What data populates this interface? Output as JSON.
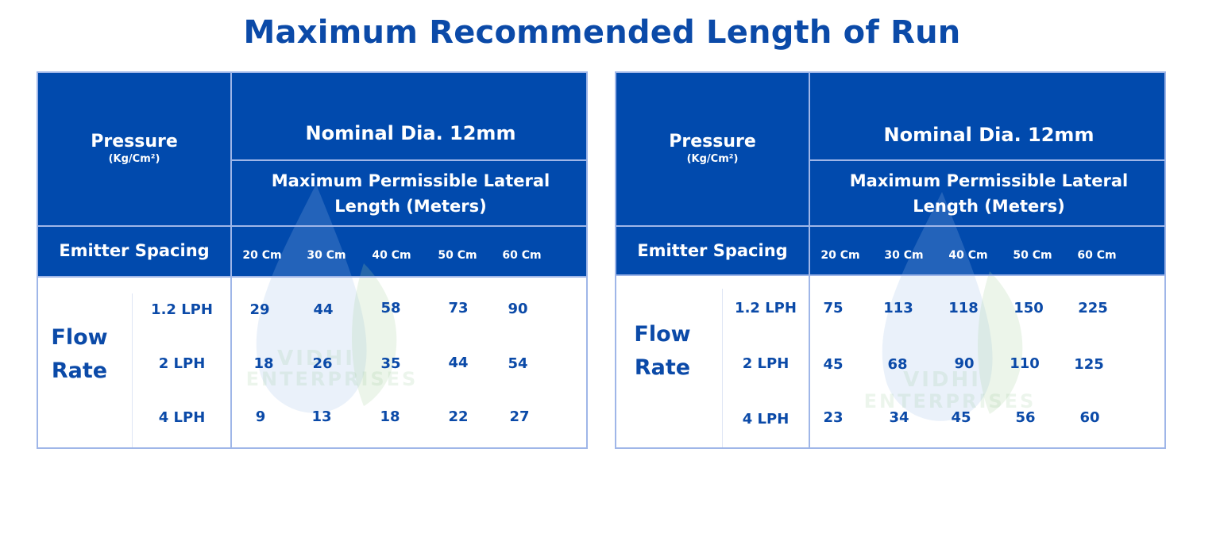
{
  "title": "Maximum Recommended Length of Run",
  "watermark": {
    "line1": "VIDHI",
    "line2": "ENTERPRISES"
  },
  "colors": {
    "header_blue": "#014aad",
    "text_blue": "#0b4aa8",
    "border": "#9fb6e8"
  },
  "tables": [
    {
      "pressure_label": "Pressure",
      "pressure_unit": "(Kg/Cm²)",
      "nominal_dia": "Nominal Dia. 12mm",
      "lateral_line1": "Maximum Permissible Lateral",
      "lateral_line2": "Length (Meters)",
      "emitter_spacing": "Emitter Spacing",
      "spacings": [
        "20 Cm",
        "30 Cm",
        "40 Cm",
        "50 Cm",
        "60 Cm"
      ],
      "flow_label1": "Flow",
      "flow_label2": "Rate",
      "rows": [
        {
          "rate": "1.2 LPH",
          "values": [
            "29",
            "44",
            "58",
            "73",
            "90"
          ]
        },
        {
          "rate": "2 LPH",
          "values": [
            "18",
            "26",
            "35",
            "44",
            "54"
          ]
        },
        {
          "rate": "4 LPH",
          "values": [
            "9",
            "13",
            "18",
            "22",
            "27"
          ]
        }
      ]
    },
    {
      "pressure_label": "Pressure",
      "pressure_unit": "(Kg/Cm²)",
      "nominal_dia": "Nominal Dia. 12mm",
      "lateral_line1": "Maximum Permissible Lateral",
      "lateral_line2": "Length (Meters)",
      "emitter_spacing": "Emitter Spacing",
      "spacings": [
        "20 Cm",
        "30 Cm",
        "40 Cm",
        "50 Cm",
        "60 Cm"
      ],
      "flow_label1": "Flow",
      "flow_label2": "Rate",
      "rows": [
        {
          "rate": "1.2 LPH",
          "values": [
            "75",
            "113",
            "118",
            "150",
            "225"
          ]
        },
        {
          "rate": "2 LPH",
          "values": [
            "45",
            "68",
            "90",
            "110",
            "125"
          ]
        },
        {
          "rate": "4 LPH",
          "values": [
            "23",
            "34",
            "45",
            "56",
            "60"
          ]
        }
      ]
    }
  ]
}
